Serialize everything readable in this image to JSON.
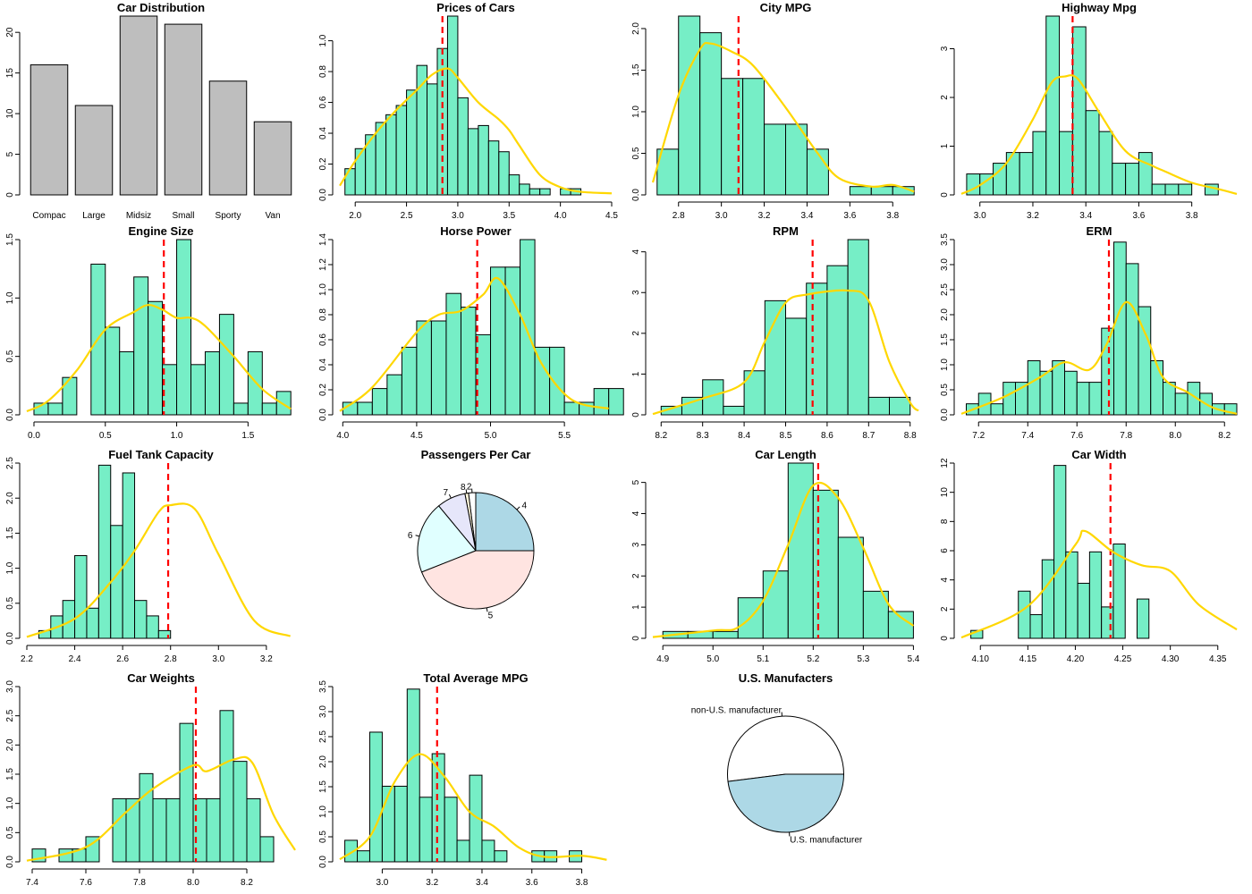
{
  "colors": {
    "hist_fill": "#76EEC6",
    "density": "#FFD700",
    "mean_line": "#FF0000",
    "bar_fill": "#BEBEBE",
    "outline": "#000000"
  },
  "chart_data": [
    {
      "type": "bar",
      "title": "Car Distribution",
      "categories": [
        "Compac",
        "Large",
        "Midsiz",
        "Small",
        "Sporty",
        "Van"
      ],
      "values": [
        16,
        11,
        22,
        21,
        14,
        9
      ],
      "ylim": [
        0,
        22
      ],
      "yticks": [
        "0",
        "5",
        "10",
        "15",
        "20"
      ]
    },
    {
      "type": "histogram",
      "title": "Prices of Cars",
      "bin_start": 1.9,
      "bin_width": 0.1,
      "values": [
        0.17,
        0.3,
        0.39,
        0.47,
        0.52,
        0.58,
        0.68,
        0.84,
        0.72,
        0.95,
        1.16,
        0.63,
        0.43,
        0.45,
        0.35,
        0.28,
        0.13,
        0.07,
        0.04,
        0.04,
        0.0,
        0.04,
        0.04
      ],
      "mean": 2.85,
      "density": [
        [
          1.85,
          0.06
        ],
        [
          2.0,
          0.22
        ],
        [
          2.2,
          0.4
        ],
        [
          2.4,
          0.55
        ],
        [
          2.6,
          0.68
        ],
        [
          2.75,
          0.78
        ],
        [
          2.9,
          0.82
        ],
        [
          3.0,
          0.76
        ],
        [
          3.2,
          0.6
        ],
        [
          3.4,
          0.49
        ],
        [
          3.5,
          0.42
        ],
        [
          3.6,
          0.32
        ],
        [
          3.8,
          0.13
        ],
        [
          4.0,
          0.05
        ],
        [
          4.2,
          0.02
        ],
        [
          4.5,
          0.01
        ]
      ],
      "xlim": [
        1.85,
        4.5
      ],
      "ylim": [
        0,
        1.16
      ],
      "xticks": [
        "2.0",
        "2.5",
        "3.0",
        "3.5",
        "4.0",
        "4.5"
      ],
      "yticks": [
        "0.0",
        "0.2",
        "0.4",
        "0.6",
        "0.8",
        "1.0"
      ]
    },
    {
      "type": "histogram",
      "title": "City MPG",
      "bin_start": 2.7,
      "bin_width": 0.1,
      "values": [
        0.55,
        2.15,
        1.95,
        1.4,
        1.4,
        0.85,
        0.85,
        0.55,
        0.0,
        0.1,
        0.1,
        0.1
      ],
      "mean": 3.08,
      "density": [
        [
          2.68,
          0.15
        ],
        [
          2.8,
          1.2
        ],
        [
          2.9,
          1.75
        ],
        [
          2.95,
          1.82
        ],
        [
          3.05,
          1.72
        ],
        [
          3.15,
          1.55
        ],
        [
          3.3,
          1.05
        ],
        [
          3.45,
          0.5
        ],
        [
          3.55,
          0.2
        ],
        [
          3.7,
          0.1
        ],
        [
          3.8,
          0.12
        ],
        [
          3.9,
          0.04
        ]
      ],
      "xlim": [
        2.68,
        3.92
      ],
      "ylim": [
        0,
        2.15
      ],
      "xticks": [
        "2.8",
        "3.0",
        "3.2",
        "3.4",
        "3.6",
        "3.8"
      ],
      "yticks": [
        "0.0",
        "0.5",
        "1.0",
        "1.5",
        "2.0"
      ]
    },
    {
      "type": "histogram",
      "title": "Highway Mpg",
      "bin_start": 2.95,
      "bin_width": 0.05,
      "values": [
        0.43,
        0.43,
        0.65,
        0.87,
        0.87,
        1.3,
        3.67,
        1.3,
        3.45,
        1.73,
        1.3,
        0.65,
        0.65,
        0.87,
        0.22,
        0.22,
        0.22,
        0.0,
        0.22
      ],
      "mean": 3.35,
      "density": [
        [
          2.93,
          0.02
        ],
        [
          3.0,
          0.2
        ],
        [
          3.1,
          0.65
        ],
        [
          3.2,
          1.55
        ],
        [
          3.27,
          2.3
        ],
        [
          3.32,
          2.43
        ],
        [
          3.37,
          2.38
        ],
        [
          3.45,
          1.7
        ],
        [
          3.55,
          0.9
        ],
        [
          3.65,
          0.6
        ],
        [
          3.7,
          0.48
        ],
        [
          3.8,
          0.25
        ],
        [
          3.9,
          0.12
        ],
        [
          3.97,
          0.02
        ]
      ],
      "xlim": [
        2.93,
        3.97
      ],
      "ylim": [
        0,
        3.67
      ],
      "xticks": [
        "3.0",
        "3.2",
        "3.4",
        "3.6",
        "3.8"
      ],
      "yticks": [
        "0",
        "1",
        "2",
        "3"
      ]
    },
    {
      "type": "histogram",
      "title": "Engine Size",
      "bin_start": 0.0,
      "bin_width": 0.1,
      "values": [
        0.1,
        0.1,
        0.32,
        0.0,
        1.29,
        0.75,
        0.54,
        1.18,
        0.97,
        0.43,
        1.5,
        0.43,
        0.54,
        0.86,
        0.1,
        0.54,
        0.1,
        0.2
      ],
      "mean": 0.91,
      "density": [
        [
          -0.05,
          0.03
        ],
        [
          0.1,
          0.12
        ],
        [
          0.3,
          0.38
        ],
        [
          0.5,
          0.73
        ],
        [
          0.7,
          0.88
        ],
        [
          0.8,
          0.94
        ],
        [
          0.9,
          0.9
        ],
        [
          1.0,
          0.83
        ],
        [
          1.1,
          0.83
        ],
        [
          1.2,
          0.76
        ],
        [
          1.4,
          0.5
        ],
        [
          1.6,
          0.22
        ],
        [
          1.8,
          0.05
        ]
      ],
      "xlim": [
        -0.05,
        1.83
      ],
      "ylim": [
        0,
        1.5
      ],
      "xticks": [
        "0.0",
        "0.5",
        "1.0",
        "1.5"
      ],
      "yticks": [
        "0.0",
        "0.5",
        "1.0",
        "1.5"
      ]
    },
    {
      "type": "histogram",
      "title": "Horse Power",
      "bin_start": 4.0,
      "bin_width": 0.1,
      "values": [
        0.1,
        0.1,
        0.21,
        0.32,
        0.54,
        0.75,
        0.75,
        0.97,
        0.86,
        0.64,
        1.18,
        1.18,
        1.4,
        0.54,
        0.54,
        0.1,
        0.1,
        0.21,
        0.21
      ],
      "mean": 4.91,
      "density": [
        [
          3.98,
          0.03
        ],
        [
          4.2,
          0.22
        ],
        [
          4.5,
          0.66
        ],
        [
          4.65,
          0.8
        ],
        [
          4.8,
          0.83
        ],
        [
          4.95,
          0.96
        ],
        [
          5.05,
          1.09
        ],
        [
          5.2,
          0.8
        ],
        [
          5.35,
          0.4
        ],
        [
          5.55,
          0.12
        ],
        [
          5.8,
          0.05
        ]
      ],
      "xlim": [
        3.98,
        5.82
      ],
      "ylim": [
        0,
        1.4
      ],
      "xticks": [
        "4.0",
        "4.5",
        "5.0",
        "5.5"
      ],
      "yticks": [
        "0.0",
        "0.2",
        "0.4",
        "0.6",
        "0.8",
        "1.0",
        "1.2",
        "1.4"
      ]
    },
    {
      "type": "histogram",
      "title": "RPM",
      "bin_start": 8.2,
      "bin_width": 0.05,
      "values": [
        0.21,
        0.43,
        0.86,
        0.21,
        1.08,
        2.8,
        2.37,
        3.23,
        3.66,
        4.3,
        0.43,
        0.43
      ],
      "mean": 8.565,
      "density": [
        [
          8.18,
          0.02
        ],
        [
          8.3,
          0.4
        ],
        [
          8.4,
          0.8
        ],
        [
          8.45,
          1.8
        ],
        [
          8.5,
          2.75
        ],
        [
          8.55,
          2.95
        ],
        [
          8.65,
          3.05
        ],
        [
          8.7,
          2.8
        ],
        [
          8.75,
          1.3
        ],
        [
          8.8,
          0.3
        ],
        [
          8.82,
          0.1
        ]
      ],
      "xlim": [
        8.18,
        8.82
      ],
      "ylim": [
        0,
        4.3
      ],
      "xticks": [
        "8.2",
        "8.3",
        "8.4",
        "8.5",
        "8.6",
        "8.7",
        "8.8"
      ],
      "yticks": [
        "0",
        "1",
        "2",
        "3",
        "4"
      ]
    },
    {
      "type": "histogram",
      "title": "ERM",
      "bin_start": 7.15,
      "bin_width": 0.05,
      "values": [
        0.22,
        0.43,
        0.22,
        0.65,
        0.65,
        1.08,
        0.87,
        1.08,
        0.87,
        0.65,
        0.65,
        1.73,
        3.45,
        3.02,
        2.16,
        1.08,
        0.65,
        0.43,
        0.65,
        0.43,
        0.22,
        0.22
      ],
      "mean": 7.73,
      "density": [
        [
          7.13,
          0.02
        ],
        [
          7.3,
          0.35
        ],
        [
          7.45,
          0.75
        ],
        [
          7.55,
          1.05
        ],
        [
          7.65,
          0.9
        ],
        [
          7.72,
          1.4
        ],
        [
          7.8,
          2.25
        ],
        [
          7.88,
          1.6
        ],
        [
          7.95,
          0.75
        ],
        [
          8.05,
          0.45
        ],
        [
          8.15,
          0.15
        ],
        [
          8.25,
          0.02
        ]
      ],
      "xlim": [
        7.13,
        8.25
      ],
      "ylim": [
        0,
        3.5
      ],
      "xticks": [
        "7.2",
        "7.4",
        "7.6",
        "7.8",
        "8.0",
        "8.2"
      ],
      "yticks": [
        "0.0",
        "0.5",
        "1.0",
        "1.5",
        "2.0",
        "2.5",
        "3.0",
        "3.5"
      ]
    },
    {
      "type": "histogram",
      "title": "Fuel Tank Capacity",
      "bin_start": 2.25,
      "bin_width": 0.05,
      "values": [
        0.11,
        0.32,
        0.54,
        1.18,
        0.43,
        2.47,
        1.61,
        2.36,
        0.54,
        0.32,
        0.11
      ],
      "mean": 2.79,
      "density": [
        [
          2.2,
          0.02
        ],
        [
          2.4,
          0.28
        ],
        [
          2.55,
          0.8
        ],
        [
          2.65,
          1.25
        ],
        [
          2.75,
          1.8
        ],
        [
          2.8,
          1.9
        ],
        [
          2.9,
          1.85
        ],
        [
          3.0,
          1.2
        ],
        [
          3.15,
          0.25
        ],
        [
          3.3,
          0.03
        ]
      ],
      "xlim": [
        2.2,
        3.32
      ],
      "ylim": [
        0,
        2.5
      ],
      "xticks": [
        "2.2",
        "2.4",
        "2.6",
        "2.8",
        "3.0",
        "3.2"
      ],
      "yticks": [
        "0.0",
        "0.5",
        "1.0",
        "1.5",
        "2.0",
        "2.5"
      ]
    },
    {
      "type": "pie",
      "title": "Passengers Per Car",
      "labels": [
        "4",
        "2",
        "8",
        "7",
        "6",
        "5"
      ],
      "values": [
        25,
        2,
        1,
        8,
        20,
        44
      ],
      "colors": [
        "#ADD8E6",
        "#FFFFFF",
        "#FFF8DC",
        "#E6E6FA",
        "#E0FFFF",
        "#FFE4E1"
      ]
    },
    {
      "type": "histogram",
      "title": "Car Length",
      "bin_start": 4.9,
      "bin_width": 0.05,
      "values": [
        0.22,
        0.22,
        0.22,
        1.3,
        2.16,
        5.62,
        4.75,
        3.24,
        1.51,
        0.86
      ],
      "mean": 5.21,
      "density": [
        [
          4.88,
          0.04
        ],
        [
          5.0,
          0.25
        ],
        [
          5.05,
          0.35
        ],
        [
          5.1,
          1.2
        ],
        [
          5.15,
          3.0
        ],
        [
          5.2,
          4.9
        ],
        [
          5.25,
          4.5
        ],
        [
          5.3,
          2.9
        ],
        [
          5.35,
          1.1
        ],
        [
          5.4,
          0.4
        ]
      ],
      "xlim": [
        4.88,
        5.41
      ],
      "ylim": [
        0,
        5.62
      ],
      "xticks": [
        "4.9",
        "5.0",
        "5.1",
        "5.2",
        "5.3",
        "5.4"
      ],
      "yticks": [
        "0",
        "1",
        "2",
        "3",
        "4",
        "5"
      ]
    },
    {
      "type": "histogram",
      "title": "Car Width",
      "bin_start": 4.09,
      "bin_width": 0.0125,
      "values": [
        0.54,
        0.0,
        0.0,
        0.0,
        3.23,
        1.62,
        5.38,
        11.84,
        5.92,
        3.77,
        5.92,
        2.15,
        6.46,
        0.0,
        2.69
      ],
      "mean": 4.237,
      "density": [
        [
          4.08,
          0.05
        ],
        [
          4.15,
          2.2
        ],
        [
          4.2,
          6.4
        ],
        [
          4.21,
          7.35
        ],
        [
          4.24,
          5.9
        ],
        [
          4.27,
          5.0
        ],
        [
          4.3,
          4.6
        ],
        [
          4.33,
          2.3
        ],
        [
          4.37,
          0.6
        ]
      ],
      "xlim": [
        4.08,
        4.37
      ],
      "ylim": [
        0,
        12
      ],
      "xticks": [
        "4.10",
        "4.15",
        "4.20",
        "4.25",
        "4.30",
        "4.35"
      ],
      "yticks": [
        "0",
        "2",
        "4",
        "6",
        "8",
        "10",
        "12"
      ]
    },
    {
      "type": "histogram",
      "title": "Car Weights",
      "bin_start": 7.4,
      "bin_width": 0.05,
      "values": [
        0.22,
        0.0,
        0.22,
        0.22,
        0.43,
        0.0,
        1.08,
        1.08,
        1.51,
        1.08,
        1.08,
        2.37,
        1.08,
        1.08,
        2.59,
        1.72,
        1.08,
        0.43
      ],
      "mean": 8.01,
      "density": [
        [
          7.38,
          0.02
        ],
        [
          7.6,
          0.25
        ],
        [
          7.75,
          0.85
        ],
        [
          7.85,
          1.25
        ],
        [
          8.0,
          1.65
        ],
        [
          8.05,
          1.55
        ],
        [
          8.15,
          1.75
        ],
        [
          8.22,
          1.7
        ],
        [
          8.3,
          0.8
        ],
        [
          8.38,
          0.2
        ]
      ],
      "xlim": [
        7.38,
        8.38
      ],
      "ylim": [
        0,
        3.0
      ],
      "xticks": [
        "7.4",
        "7.6",
        "7.8",
        "8.0",
        "8.2"
      ],
      "yticks": [
        "0.0",
        "0.5",
        "1.0",
        "1.5",
        "2.0",
        "2.5",
        "3.0"
      ]
    },
    {
      "type": "histogram",
      "title": "Total Average MPG",
      "bin_start": 2.85,
      "bin_width": 0.05,
      "values": [
        0.43,
        0.22,
        2.59,
        1.51,
        1.51,
        3.45,
        1.29,
        2.16,
        1.29,
        0.43,
        1.73,
        0.43,
        0.22,
        0.0,
        0.0,
        0.22,
        0.22,
        0.0,
        0.22
      ],
      "mean": 3.22,
      "density": [
        [
          2.83,
          0.05
        ],
        [
          2.95,
          0.5
        ],
        [
          3.05,
          1.6
        ],
        [
          3.15,
          2.15
        ],
        [
          3.25,
          1.7
        ],
        [
          3.35,
          1.0
        ],
        [
          3.45,
          0.7
        ],
        [
          3.55,
          0.28
        ],
        [
          3.65,
          0.1
        ],
        [
          3.8,
          0.12
        ],
        [
          3.9,
          0.04
        ]
      ],
      "xlim": [
        2.83,
        3.92
      ],
      "ylim": [
        0,
        3.5
      ],
      "xticks": [
        "3.0",
        "3.2",
        "3.4",
        "3.6",
        "3.8"
      ],
      "yticks": [
        "0.0",
        "0.5",
        "1.0",
        "1.5",
        "2.0",
        "2.5",
        "3.0",
        "3.5"
      ]
    },
    {
      "type": "pie",
      "title": "U.S. Manufacters",
      "labels": [
        "non-U.S. manufacturer",
        "U.S. manufacturer"
      ],
      "values": [
        52,
        48
      ],
      "colors": [
        "#FFFFFF",
        "#ADD8E6"
      ]
    }
  ]
}
